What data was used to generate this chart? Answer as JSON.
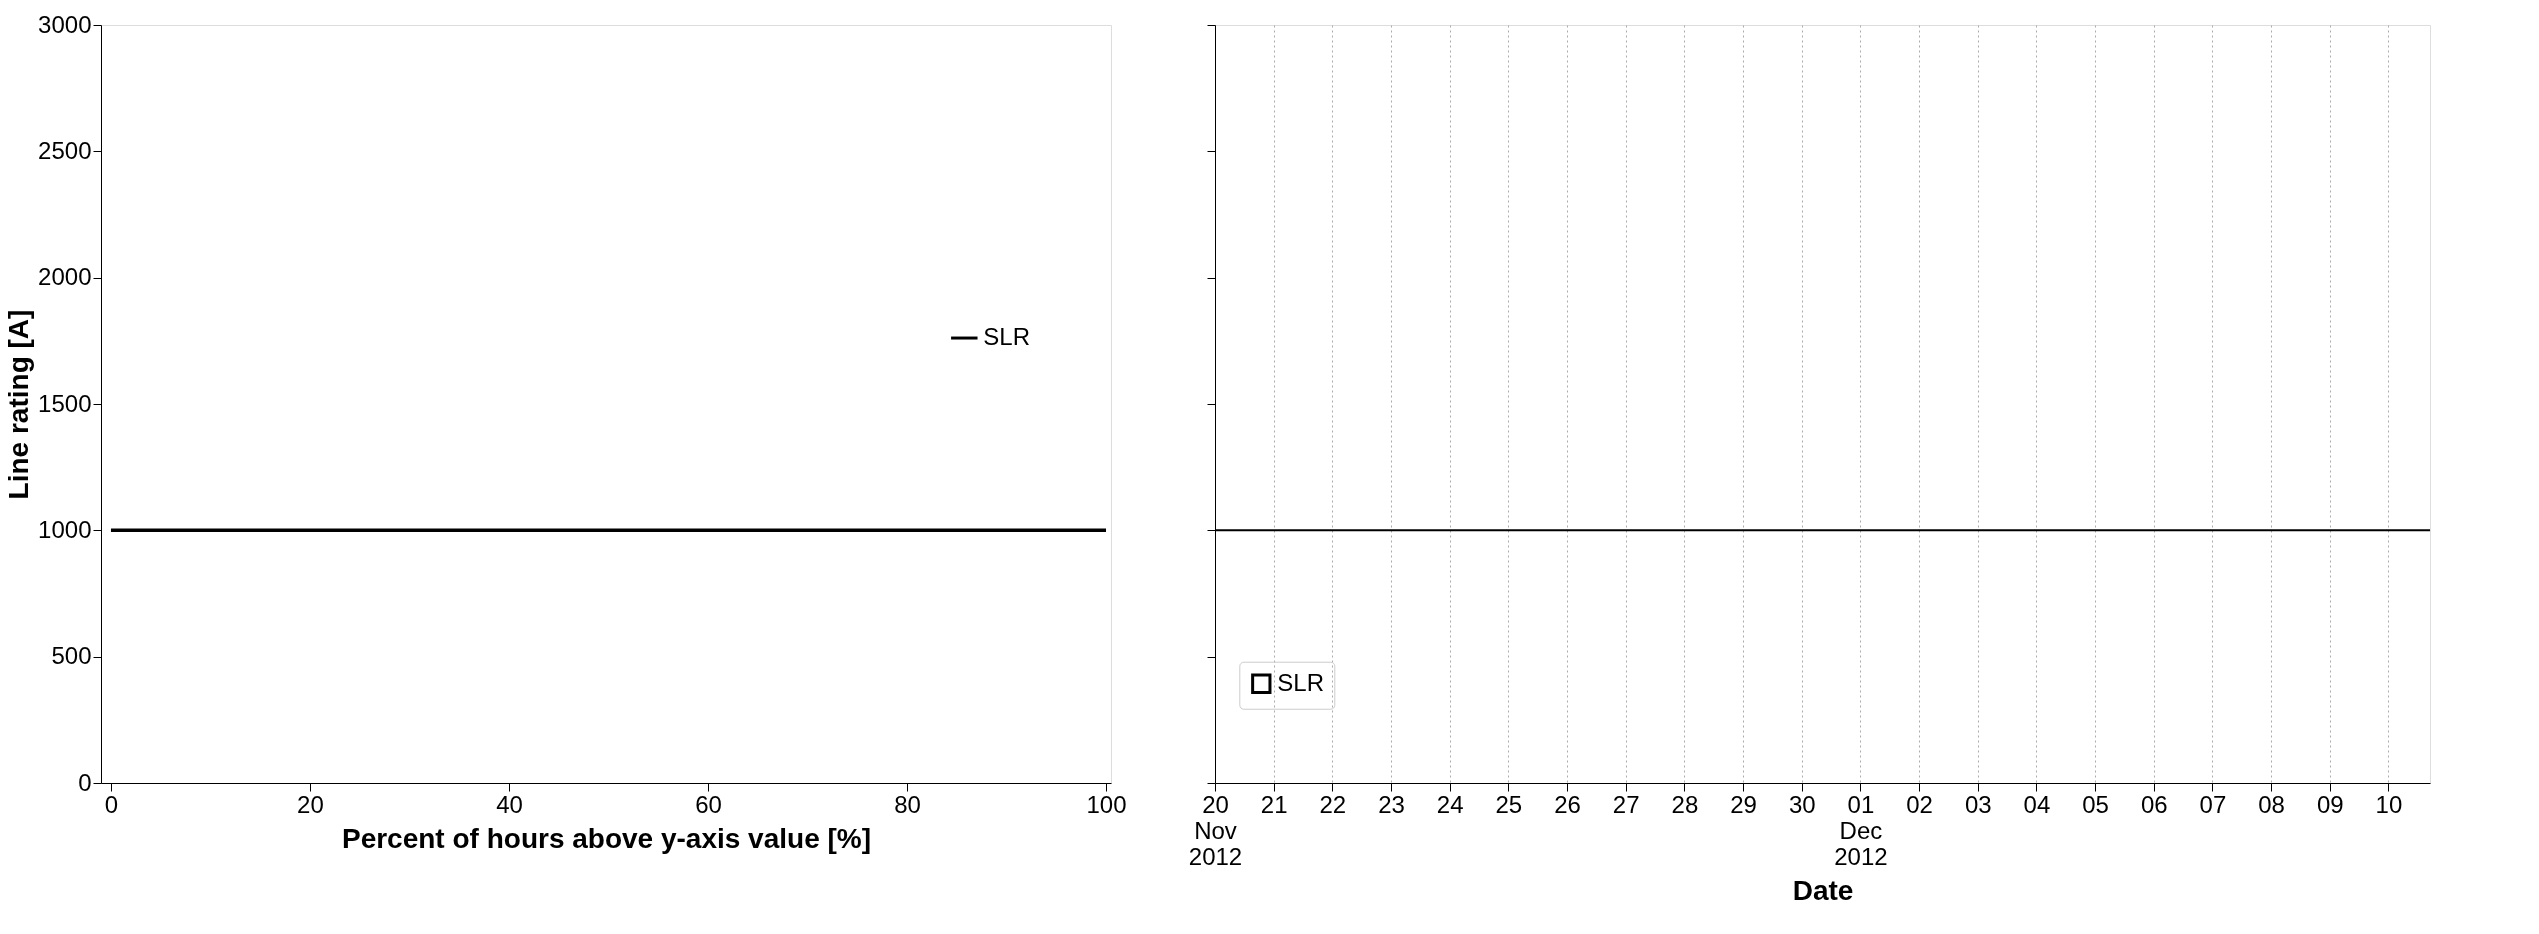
{
  "chart_data": [
    {
      "type": "line",
      "xlabel": "Percent of hours above y-axis value [%]",
      "ylabel": "Line rating [A]",
      "x": [
        0,
        100
      ],
      "series": [
        {
          "name": "SLR",
          "color": "#000000",
          "values": [
            1000,
            1000
          ]
        }
      ],
      "xlim": [
        -1,
        100.5
      ],
      "xticks": [
        0,
        20,
        40,
        60,
        80,
        100
      ],
      "ylim": [
        0,
        3000
      ],
      "yticks": [
        0,
        500,
        1000,
        1500,
        2000,
        2500,
        3000
      ],
      "grid": false,
      "legend": "right"
    },
    {
      "type": "line",
      "xlabel": "Date",
      "x": [
        "2012-11-20T00:00",
        "2012-12-10T17:00"
      ],
      "series": [
        {
          "name": "SLR",
          "color": "#000000",
          "values": [
            1000,
            1000
          ]
        }
      ],
      "xlim": [
        "2012-11-20T00:00",
        "2012-12-10T17:00"
      ],
      "xticks": [
        {
          "value": "2012-11-20",
          "label": "20\nNov\n2012"
        },
        {
          "value": "2012-11-21",
          "label": "21"
        },
        {
          "value": "2012-11-22",
          "label": "22"
        },
        {
          "value": "2012-11-23",
          "label": "23"
        },
        {
          "value": "2012-11-24",
          "label": "24"
        },
        {
          "value": "2012-11-25",
          "label": "25"
        },
        {
          "value": "2012-11-26",
          "label": "26"
        },
        {
          "value": "2012-11-27",
          "label": "27"
        },
        {
          "value": "2012-11-28",
          "label": "28"
        },
        {
          "value": "2012-11-29",
          "label": "29"
        },
        {
          "value": "2012-11-30",
          "label": "30"
        },
        {
          "value": "2012-12-01",
          "label": "01\nDec\n2012"
        },
        {
          "value": "2012-12-02",
          "label": "02"
        },
        {
          "value": "2012-12-03",
          "label": "03"
        },
        {
          "value": "2012-12-04",
          "label": "04"
        },
        {
          "value": "2012-12-05",
          "label": "05"
        },
        {
          "value": "2012-12-06",
          "label": "06"
        },
        {
          "value": "2012-12-07",
          "label": "07"
        },
        {
          "value": "2012-12-08",
          "label": "08"
        },
        {
          "value": "2012-12-09",
          "label": "09"
        },
        {
          "value": "2012-12-10",
          "label": "10"
        }
      ],
      "ylim": [
        0,
        3000
      ],
      "yticks": [
        0,
        500,
        1000,
        1500,
        2000,
        2500,
        3000
      ],
      "grid": "x",
      "legend": "bottom left",
      "tick_labels": "x"
    }
  ]
}
